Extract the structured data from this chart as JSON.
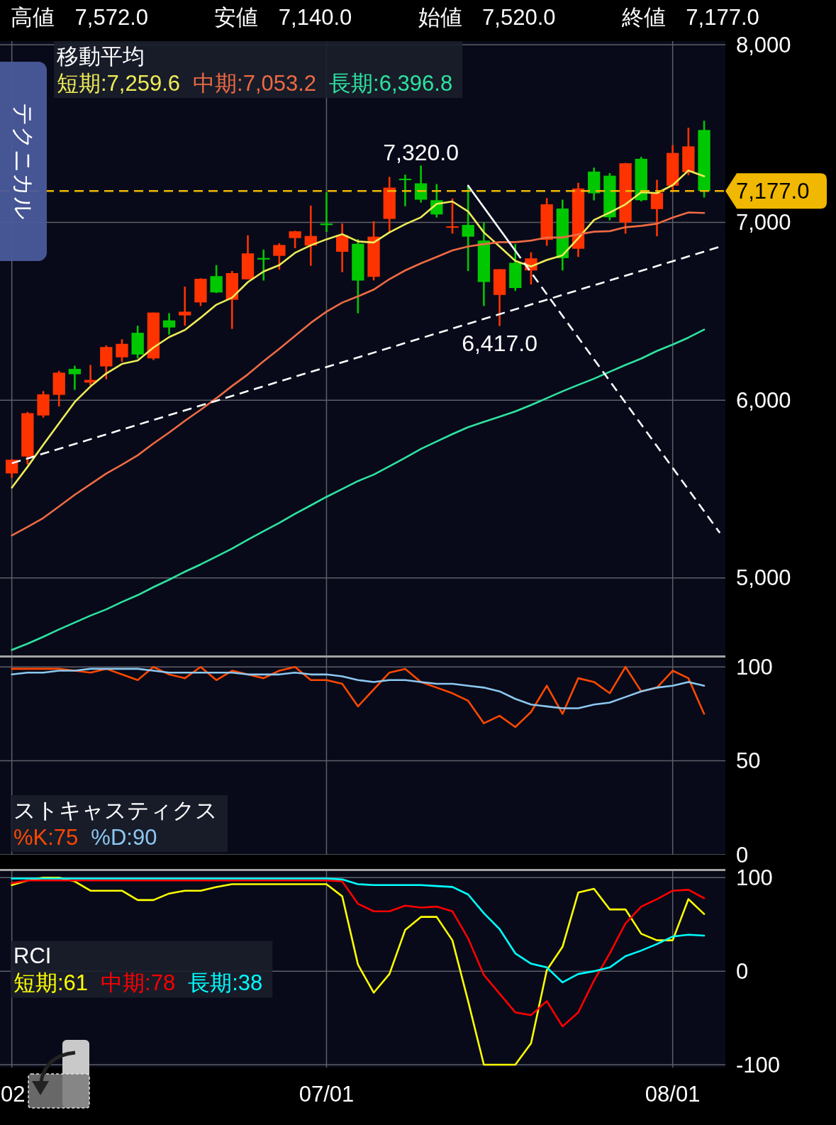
{
  "chart_data": [
    {
      "type": "candlestick",
      "title": "高値 7,572.0 安値 7,140.0 始値 7,520.0 終値 7,177.0",
      "legend_title": "移動平均",
      "legend": "top left",
      "grid": true,
      "tick_labels": "y",
      "categories": [
        null,
        null,
        null,
        null,
        null,
        null,
        null,
        null,
        null,
        null,
        null,
        null,
        null,
        null,
        null,
        null,
        null,
        null,
        null,
        null,
        null,
        null,
        null,
        null,
        null,
        null,
        null,
        null,
        null,
        null,
        null,
        null,
        null,
        null,
        null,
        null,
        null,
        null,
        null,
        null,
        null,
        null,
        null,
        null,
        null,
        null
      ],
      "ylim": [
        4560,
        8020
      ],
      "yticks": [
        {
          "value": 5000,
          "label": "5,000"
        },
        {
          "value": 6000,
          "label": "6,000"
        },
        {
          "value": 7000,
          "label": "7,000"
        },
        {
          "value": 8000,
          "label": "8,000"
        }
      ],
      "ohlc": [
        [
          5588,
          5668,
          5563,
          5665
        ],
        [
          5683,
          5934,
          5639,
          5927
        ],
        [
          5914,
          6051,
          5902,
          6033
        ],
        [
          6030,
          6165,
          5965,
          6155
        ],
        [
          6176,
          6194,
          6058,
          6146
        ],
        [
          6099,
          6198,
          6084,
          6114
        ],
        [
          6190,
          6308,
          6118,
          6299
        ],
        [
          6241,
          6343,
          6216,
          6317
        ],
        [
          6379,
          6419,
          6235,
          6257
        ],
        [
          6235,
          6493,
          6226,
          6493
        ],
        [
          6449,
          6489,
          6369,
          6409
        ],
        [
          6477,
          6639,
          6419,
          6498
        ],
        [
          6550,
          6686,
          6530,
          6683
        ],
        [
          6698,
          6760,
          6603,
          6606
        ],
        [
          6565,
          6727,
          6401,
          6715
        ],
        [
          6680,
          6928,
          6679,
          6826
        ],
        [
          6800,
          6847,
          6673,
          6791
        ],
        [
          6812,
          6883,
          6734,
          6873
        ],
        [
          6912,
          6953,
          6855,
          6950
        ],
        [
          6870,
          7095,
          6756,
          6924
        ],
        [
          6994,
          7170,
          6946,
          6985
        ],
        [
          6835,
          6994,
          6720,
          6928
        ],
        [
          6880,
          6906,
          6489,
          6673
        ],
        [
          6694,
          7007,
          6674,
          6920
        ],
        [
          7020,
          7256,
          6944,
          7196
        ],
        [
          7246,
          7269,
          7091,
          7238
        ],
        [
          7220,
          7320,
          7112,
          7128
        ],
        [
          7125,
          7216,
          7028,
          7045
        ],
        [
          6970,
          7135,
          6937,
          6978
        ],
        [
          6986,
          7207,
          6727,
          6920
        ],
        [
          6898,
          7000,
          6530,
          6665
        ],
        [
          6592,
          6737,
          6417,
          6737
        ],
        [
          6773,
          6878,
          6615,
          6631
        ],
        [
          6730,
          6832,
          6651,
          6798
        ],
        [
          6902,
          7137,
          6869,
          7102
        ],
        [
          7078,
          7128,
          6730,
          6799
        ],
        [
          6852,
          7223,
          6806,
          7191
        ],
        [
          7286,
          7308,
          7124,
          7164
        ],
        [
          7263,
          7277,
          7012,
          7029
        ],
        [
          7000,
          7335,
          6937,
          7333
        ],
        [
          7358,
          7369,
          7118,
          7125
        ],
        [
          7075,
          7240,
          6922,
          7167
        ],
        [
          7207,
          7434,
          7170,
          7391
        ],
        [
          7283,
          7533,
          7266,
          7428
        ],
        [
          7520,
          7572,
          7140,
          7177
        ],
        null
      ],
      "colors": [
        "#ff3300",
        "#ff3300",
        "#ff3300",
        "#ff3300",
        "#00c800",
        "#ff3300",
        "#ff3300",
        "#ff3300",
        "#00c800",
        "#ff3300",
        "#00c800",
        "#ff3300",
        "#ff3300",
        "#00c800",
        "#ff3300",
        "#ff3300",
        "#00c800",
        "#ff3300",
        "#ff3300",
        "#ff3300",
        "#00c800",
        "#ff3300",
        "#00c800",
        "#ff3300",
        "#ff3300",
        "#00c800",
        "#00c800",
        "#00c800",
        "#ff3300",
        "#00c800",
        "#00c800",
        "#ff3300",
        "#00c800",
        "#ff3300",
        "#ff3300",
        "#00c800",
        "#ff3300",
        "#00c800",
        "#00c800",
        "#ff3300",
        "#00c800",
        "#ff3300",
        "#ff3300",
        "#ff3300",
        "#00c800",
        null
      ],
      "series": [
        {
          "type": "line",
          "name": "短期:7,259.6",
          "color": "#eeec58",
          "values": [
            5508,
            5625,
            5749,
            5870,
            5990,
            6077,
            6150,
            6204,
            6223,
            6296,
            6355,
            6395,
            6464,
            6537,
            6577,
            6664,
            6724,
            6760,
            6829,
            6871,
            6905,
            6934,
            6893,
            6887,
            6944,
            6990,
            7029,
            7104,
            7118,
            7062,
            6944,
            6865,
            6784,
            6752,
            6789,
            6815,
            6911,
            7014,
            7056,
            7102,
            7170,
            7165,
            7210,
            7292,
            7260,
            null
          ]
        },
        {
          "type": "line",
          "name": "中期:7,053.2",
          "color": "#ef6a43",
          "values": [
            5239,
            5287,
            5337,
            5402,
            5468,
            5527,
            5587,
            5637,
            5690,
            5756,
            5818,
            5884,
            5946,
            6011,
            6080,
            6145,
            6219,
            6289,
            6362,
            6435,
            6498,
            6549,
            6584,
            6622,
            6681,
            6730,
            6770,
            6806,
            6843,
            6865,
            6878,
            6889,
            6889,
            6898,
            6915,
            6915,
            6933,
            6948,
            6951,
            6973,
            6981,
            6993,
            7027,
            7056,
            7053,
            null
          ]
        },
        {
          "type": "line",
          "name": "長期:6,396.8",
          "color": "#2ee3a0",
          "values": [
            4595,
            4630,
            4669,
            4710,
            4749,
            4788,
            4823,
            4865,
            4903,
            4948,
            4990,
            5035,
            5076,
            5120,
            5165,
            5215,
            5263,
            5310,
            5361,
            5408,
            5456,
            5500,
            5545,
            5581,
            5628,
            5676,
            5726,
            5768,
            5809,
            5848,
            5878,
            5907,
            5937,
            5973,
            6011,
            6050,
            6086,
            6121,
            6160,
            6198,
            6234,
            6277,
            6313,
            6352,
            6397,
            null
          ]
        },
        {
          "type": "line",
          "color": "#ffffff",
          "line_style": "dashed",
          "values": [
            5645,
            null,
            null,
            null,
            null,
            null,
            null,
            null,
            null,
            null,
            null,
            null,
            null,
            null,
            null,
            null,
            null,
            null,
            null,
            null,
            null,
            null,
            null,
            null,
            null,
            null,
            null,
            null,
            null,
            null,
            null,
            null,
            null,
            null,
            null,
            null,
            null,
            null,
            null,
            null,
            null,
            null,
            null,
            null,
            null,
            6863
          ]
        },
        {
          "type": "line",
          "color": "#ffffff",
          "values": [
            null,
            null,
            null,
            null,
            null,
            null,
            null,
            null,
            null,
            null,
            null,
            null,
            null,
            null,
            null,
            null,
            null,
            null,
            null,
            null,
            null,
            null,
            null,
            null,
            null,
            null,
            null,
            null,
            null,
            7207,
            null,
            null,
            6841,
            null,
            null,
            null,
            null,
            null,
            null,
            null,
            null,
            null,
            null,
            null,
            null,
            null
          ]
        },
        {
          "type": "line",
          "color": "#ffffff",
          "line_style": "dashed",
          "values": [
            null,
            null,
            null,
            null,
            null,
            null,
            null,
            null,
            null,
            null,
            null,
            null,
            null,
            null,
            null,
            null,
            null,
            null,
            null,
            null,
            null,
            null,
            null,
            null,
            null,
            null,
            null,
            null,
            null,
            null,
            null,
            null,
            6841,
            null,
            null,
            null,
            null,
            null,
            null,
            null,
            null,
            null,
            null,
            null,
            null,
            5253
          ]
        }
      ],
      "ref_lines": [
        {
          "axis": "y",
          "value": 7177,
          "color": "#f0b800",
          "line_style": "dashed"
        }
      ],
      "annotations": [
        "テクニカル",
        "7,177.0",
        {
          "text": "7,320.0",
          "y": 7320
        },
        {
          "text": "6,417.0",
          "y": 6417
        }
      ]
    },
    {
      "type": "line",
      "legend_title": "ストキャスティクス",
      "legend": "bottom left",
      "grid": true,
      "tick_labels": "y",
      "categories": [
        null,
        null,
        null,
        null,
        null,
        null,
        null,
        null,
        null,
        null,
        null,
        null,
        null,
        null,
        null,
        null,
        null,
        null,
        null,
        null,
        null,
        null,
        null,
        null,
        null,
        null,
        null,
        null,
        null,
        null,
        null,
        null,
        null,
        null,
        null,
        null,
        null,
        null,
        null,
        null,
        null,
        null,
        null,
        null,
        null,
        null
      ],
      "ylim": [
        0,
        105
      ],
      "yticks": [
        0,
        50,
        100
      ],
      "series": [
        {
          "name": "%K:75",
          "color": "#ff4800",
          "values": [
            99,
            99,
            99,
            99,
            98,
            97,
            99,
            96,
            93,
            100,
            96,
            94,
            100,
            93,
            98,
            96,
            94,
            98,
            100,
            93,
            93,
            91,
            79,
            88,
            97,
            99,
            92,
            89,
            86,
            82,
            70,
            74,
            68,
            76,
            90,
            75,
            94,
            92,
            86,
            100,
            87,
            89,
            98,
            94,
            75,
            null
          ]
        },
        {
          "name": "%D:90",
          "color": "#8cc8f0",
          "values": [
            96,
            97,
            97,
            98,
            98,
            99,
            99,
            99,
            99,
            98,
            97,
            97,
            97,
            97,
            97,
            96,
            96,
            96,
            97,
            96,
            96,
            95,
            93,
            92,
            93,
            93,
            92,
            91,
            91,
            90,
            89,
            87,
            83,
            80,
            79,
            78,
            78,
            80,
            81,
            84,
            87,
            89,
            90,
            92,
            90,
            null
          ]
        }
      ]
    },
    {
      "type": "line",
      "legend_title": "RCI",
      "legend": "left",
      "grid": true,
      "categories": [
        "02",
        null,
        null,
        null,
        null,
        null,
        null,
        null,
        null,
        null,
        null,
        null,
        null,
        null,
        null,
        null,
        null,
        null,
        null,
        null,
        "07/01",
        null,
        null,
        null,
        null,
        null,
        null,
        null,
        null,
        null,
        null,
        null,
        null,
        null,
        null,
        null,
        null,
        null,
        null,
        null,
        null,
        null,
        "08/01",
        null,
        null,
        null
      ],
      "ylim": [
        -103,
        107
      ],
      "yticks": [
        -100,
        0,
        100
      ],
      "series": [
        {
          "name": "短期:61",
          "color": "#ffff00",
          "values": [
            92,
            97,
            100,
            100,
            96,
            86,
            86,
            86,
            76,
            76,
            83,
            86,
            86,
            90,
            93,
            93,
            93,
            93,
            93,
            93,
            93,
            80,
            7,
            -23,
            -3,
            44,
            58,
            58,
            33,
            -32,
            -100,
            -100,
            -100,
            -77,
            1,
            26,
            84,
            88,
            66,
            66,
            40,
            33,
            33,
            77,
            61,
            null
          ]
        },
        {
          "name": "中期:78",
          "color": "#ff0000",
          "values": [
            94,
            97,
            97,
            97,
            97,
            97,
            97,
            97,
            97,
            97,
            97,
            97,
            97,
            97,
            97,
            97,
            97,
            97,
            97,
            97,
            97,
            96,
            72,
            64,
            64,
            70,
            68,
            69,
            64,
            35,
            -4,
            -24,
            -44,
            -47,
            -32,
            -59,
            -44,
            -10,
            19,
            51,
            69,
            77,
            86,
            87,
            78,
            null
          ]
        },
        {
          "name": "長期:38",
          "color": "#00ffff",
          "values": [
            99,
            99,
            99,
            99,
            99,
            99,
            99,
            99,
            99,
            99,
            99,
            99,
            99,
            99,
            99,
            99,
            99,
            99,
            99,
            99,
            99,
            98,
            93,
            92,
            92,
            92,
            92,
            91,
            90,
            82,
            62,
            45,
            19,
            8,
            4,
            -12,
            -3,
            0,
            4,
            16,
            22,
            29,
            37,
            39,
            38,
            null
          ]
        }
      ]
    }
  ]
}
